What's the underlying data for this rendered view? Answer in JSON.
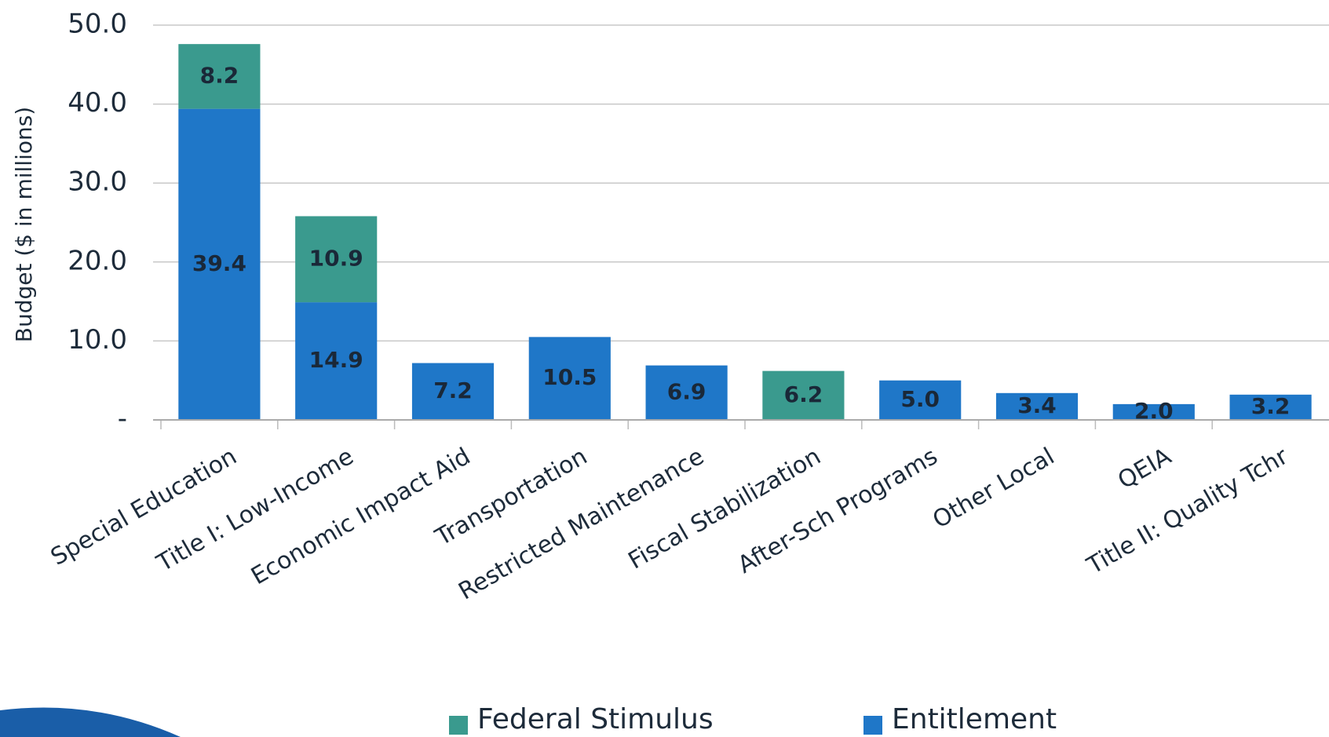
{
  "chart_data": {
    "type": "stacked_bar",
    "ylabel": "Budget ($ in millions)",
    "categories": [
      "Special Education",
      "Title I: Low-Income",
      "Economic Impact Aid",
      "Transportation",
      "Restricted Maintenance",
      "Fiscal Stabilization",
      "After-Sch Programs",
      "Other Local",
      "QEIA",
      "Title II: Quality Tchr"
    ],
    "series": [
      {
        "name": "Federal Stimulus",
        "color": "#3a9a8e",
        "values": [
          8.2,
          10.9,
          null,
          null,
          null,
          6.2,
          null,
          null,
          null,
          null
        ],
        "value_labels": [
          "8.2",
          "10.9",
          null,
          null,
          null,
          "6.2",
          null,
          null,
          null,
          null
        ]
      },
      {
        "name": "Entitlement",
        "color": "#1f77c8",
        "values": [
          39.4,
          14.9,
          7.2,
          10.5,
          6.9,
          null,
          5.0,
          3.4,
          2.0,
          3.2
        ],
        "value_labels": [
          "39.4",
          "14.9",
          "7.2",
          "10.5",
          "6.9",
          null,
          "5.0",
          "3.4",
          "2.0",
          "3.2"
        ]
      }
    ],
    "ylim": [
      0,
      50
    ],
    "yticks": [
      {
        "value": 0,
        "label": "-"
      },
      {
        "value": 10,
        "label": "10.0"
      },
      {
        "value": 20,
        "label": "20.0"
      },
      {
        "value": 30,
        "label": "30.0"
      },
      {
        "value": 40,
        "label": "40.0"
      },
      {
        "value": 50,
        "label": "50.0"
      }
    ],
    "grid": true,
    "legend": "bottom"
  }
}
